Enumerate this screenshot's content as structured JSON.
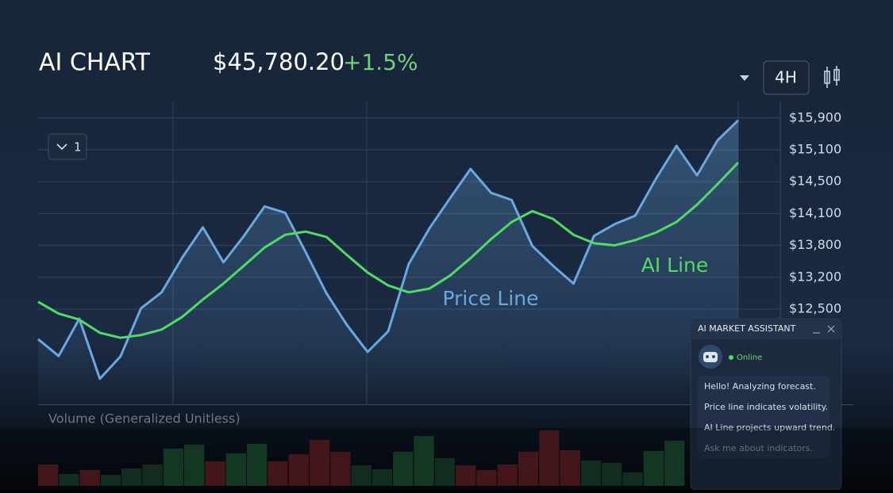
{
  "header": {
    "title": "AI CHART",
    "price": "$45,780.20",
    "change": "+1.5%",
    "interval": "4H",
    "dropdown": "1"
  },
  "chart_data": [
    {
      "type": "line",
      "annotations": [
        "Price Line",
        "AI Line"
      ],
      "ylim": [
        10400,
        16300
      ],
      "yticks": [
        {
          "value": 12500,
          "label": "$12,500"
        },
        {
          "value": 13200,
          "label": "$13,200"
        },
        {
          "value": 13800,
          "label": "$13,800"
        },
        {
          "value": 14100,
          "label": "$14,100"
        },
        {
          "value": 14500,
          "label": "$14,500"
        },
        {
          "value": 15100,
          "label": "$15,100"
        },
        {
          "value": 15900,
          "label": "$15,900"
        }
      ],
      "grid": true,
      "series": [
        {
          "name": "Price Line",
          "color": "#6aa8e0",
          "values": [
            11840,
            11470,
            12290,
            10970,
            11460,
            12520,
            12870,
            13570,
            13970,
            13480,
            13890,
            14190,
            14110,
            13670,
            12850,
            12150,
            11560,
            12010,
            13450,
            13960,
            14290,
            14740,
            14360,
            14270,
            13790,
            13420,
            13060,
            13890,
            14000,
            14080,
            14550,
            15200,
            14620,
            15340,
            15840
          ]
        },
        {
          "name": "AI Line",
          "color": "#4fdc64",
          "values": [
            12660,
            12400,
            12270,
            11980,
            11870,
            11930,
            12050,
            12330,
            12710,
            13060,
            13420,
            13760,
            13900,
            13930,
            13880,
            13620,
            13290,
            13020,
            12870,
            12950,
            13230,
            13560,
            13860,
            14020,
            14130,
            14050,
            13900,
            13820,
            13800,
            13850,
            13920,
            14020,
            14210,
            14470,
            14860
          ]
        }
      ]
    },
    {
      "type": "bar",
      "title": "Volume (Generalized Unitless)",
      "ylim": [
        0,
        100
      ],
      "values": [
        27,
        15,
        20,
        14,
        22,
        27,
        47,
        52,
        31,
        41,
        53,
        31,
        40,
        58,
        43,
        26,
        21,
        43,
        63,
        35,
        26,
        20,
        27,
        43,
        70,
        45,
        32,
        29,
        17,
        44,
        57
      ],
      "colors": [
        "#5a1e24",
        "#173d2a",
        "#5a1e24",
        "#173d2a",
        "#173d2a",
        "#173d2a",
        "#1b4a30",
        "#1b4a30",
        "#5a1e24",
        "#1b4a30",
        "#1b4a30",
        "#5a1e24",
        "#5a1e24",
        "#5a1e24",
        "#5a1e24",
        "#173d2a",
        "#173d2a",
        "#1b4a30",
        "#1b4a30",
        "#173d2a",
        "#5a1e24",
        "#5a1e24",
        "#5a1e24",
        "#5a1e24",
        "#5a1e24",
        "#5a1e24",
        "#173d2a",
        "#173d2a",
        "#173d2a",
        "#1b4a30",
        "#1b4a30"
      ]
    }
  ],
  "assistant": {
    "title": "AI MARKET ASSISTANT",
    "status": "Online",
    "messages": [
      "Hello! Analyzing forecast.",
      "Price line indicates volatility.",
      "AI Line projects upward trend.",
      "Ask me about indicators."
    ]
  }
}
